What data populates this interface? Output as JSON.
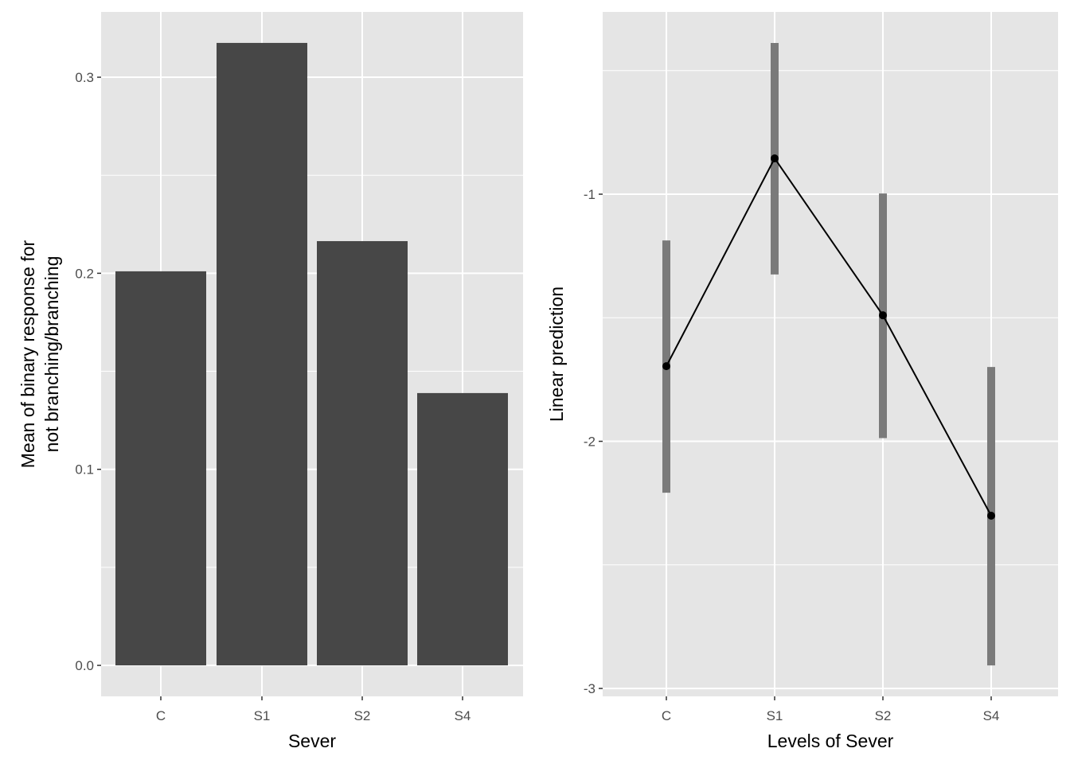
{
  "chart_data": [
    {
      "type": "bar",
      "xlabel": "Sever",
      "ylabel": [
        "Mean of binary response for",
        "not branching/branching"
      ],
      "categories": [
        "C",
        "S1",
        "S2",
        "S4"
      ],
      "values": [
        0.201,
        0.3175,
        0.2164,
        0.1389
      ],
      "ylim": [
        -0.0158,
        0.3333
      ],
      "yticks": [
        0.0,
        0.1,
        0.2,
        0.3
      ],
      "ytick_labels": [
        "0.0",
        "0.1",
        "0.2",
        "0.3"
      ],
      "grid": true,
      "bar_color": "#474747",
      "panel_color": "#e5e5e5"
    },
    {
      "type": "line",
      "xlabel": "Levels of Sever",
      "ylabel": "Linear prediction",
      "categories": [
        "C",
        "S1",
        "S2",
        "S4"
      ],
      "values": [
        -1.696,
        -0.855,
        -1.49,
        -2.301
      ],
      "intervals": [
        [
          -2.208,
          -1.187
        ],
        [
          -1.325,
          -0.388
        ],
        [
          -1.987,
          -0.997
        ],
        [
          -2.907,
          -1.699
        ]
      ],
      "ylim": [
        -3.032,
        -0.2625
      ],
      "yticks": [
        -3,
        -2,
        -1
      ],
      "ytick_labels": [
        "-3",
        "-2",
        "-1"
      ],
      "grid": true,
      "interval_color": "#7a7a7a",
      "line_color": "#000000",
      "panel_color": "#e5e5e5"
    }
  ]
}
